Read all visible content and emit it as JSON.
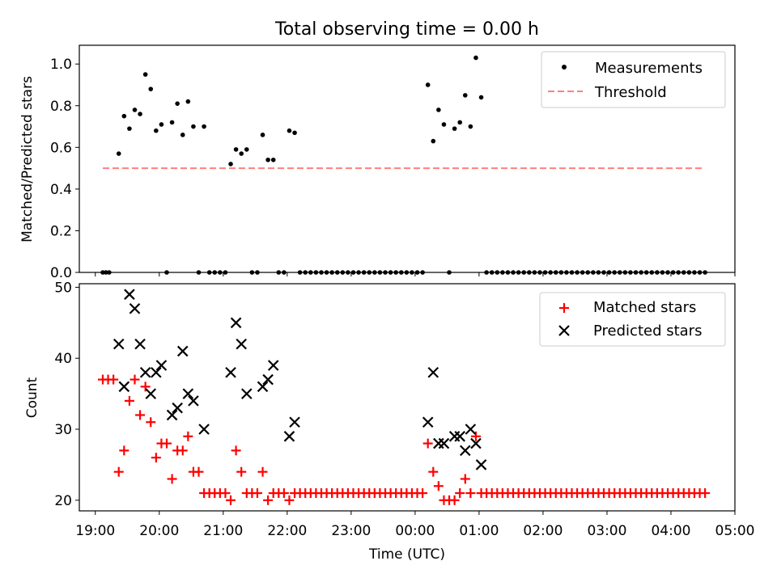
{
  "chart_data": [
    {
      "type": "scatter",
      "title": "Total observing time = 0.00 h",
      "xlabel": "",
      "ylabel": "Matched/Predicted stars",
      "xlim": [
        "18:45",
        "05:00"
      ],
      "ylim": [
        0,
        1.09
      ],
      "yticks": [
        "0.0",
        "0.2",
        "0.4",
        "0.6",
        "0.8",
        "1.0"
      ],
      "legend": {
        "position": "top-right"
      },
      "threshold": {
        "name": "Threshold",
        "value": 0.5,
        "x_from": "19:07",
        "x_to": "04:32",
        "color": "#ff7f7f"
      },
      "series": [
        {
          "name": "Measurements",
          "color": "#000000",
          "x": [
            "19:07",
            "19:10",
            "19:13",
            "19:22",
            "19:27",
            "19:32",
            "19:37",
            "19:42",
            "19:47",
            "19:52",
            "19:57",
            "20:02",
            "20:07",
            "20:12",
            "20:17",
            "20:22",
            "20:27",
            "20:32",
            "20:37",
            "20:42",
            "20:47",
            "20:52",
            "20:57",
            "21:02",
            "21:07",
            "21:12",
            "21:17",
            "21:22",
            "21:27",
            "21:32",
            "21:37",
            "21:42",
            "21:47",
            "21:52",
            "21:57",
            "22:02",
            "22:07",
            "22:12",
            "22:17",
            "22:22",
            "22:27",
            "22:32",
            "22:37",
            "22:42",
            "22:47",
            "22:52",
            "22:57",
            "23:02",
            "23:07",
            "23:12",
            "23:17",
            "23:22",
            "23:27",
            "23:32",
            "23:37",
            "23:42",
            "23:47",
            "23:52",
            "23:57",
            "00:02",
            "00:07",
            "00:12",
            "00:17",
            "00:22",
            "00:27",
            "00:32",
            "00:37",
            "00:42",
            "00:47",
            "00:52",
            "00:57",
            "01:02",
            "01:07",
            "01:12",
            "01:17",
            "01:22",
            "01:27",
            "01:32",
            "01:37",
            "01:42",
            "01:47",
            "01:52",
            "01:57",
            "02:02",
            "02:07",
            "02:12",
            "02:17",
            "02:22",
            "02:27",
            "02:32",
            "02:37",
            "02:42",
            "02:47",
            "02:52",
            "02:57",
            "03:02",
            "03:07",
            "03:12",
            "03:17",
            "03:22",
            "03:27",
            "03:32",
            "03:37",
            "03:42",
            "03:47",
            "03:52",
            "03:57",
            "04:02",
            "04:07",
            "04:12",
            "04:17",
            "04:22",
            "04:27",
            "04:32"
          ],
          "y": [
            0,
            0,
            0,
            0.57,
            0.75,
            0.69,
            0.78,
            0.76,
            0.95,
            0.88,
            0.68,
            0.71,
            0,
            0.72,
            0.81,
            0.66,
            0.82,
            0.7,
            0,
            0.7,
            0,
            0,
            0,
            0,
            0.52,
            0.59,
            0.57,
            0.59,
            0,
            0,
            0.66,
            0.54,
            0.54,
            0,
            0,
            0.68,
            0.67,
            0,
            0,
            0,
            0,
            0,
            0,
            0,
            0,
            0,
            0,
            0,
            0,
            0,
            0,
            0,
            0,
            0,
            0,
            0,
            0,
            0,
            0,
            0,
            0,
            0.9,
            0.63,
            0.78,
            0.71,
            0,
            0.69,
            0.72,
            0.85,
            0.7,
            1.03,
            0.84,
            0,
            0,
            0,
            0,
            0,
            0,
            0,
            0,
            0,
            0,
            0,
            0,
            0,
            0,
            0,
            0,
            0,
            0,
            0,
            0,
            0,
            0,
            0,
            0,
            0,
            0,
            0,
            0,
            0,
            0,
            0,
            0,
            0,
            0,
            0,
            0,
            0,
            0,
            0,
            0,
            0,
            0
          ]
        }
      ]
    },
    {
      "type": "scatter",
      "title": "",
      "xlabel": "Time (UTC)",
      "ylabel": "Count",
      "xlim": [
        "18:45",
        "05:00"
      ],
      "ylim": [
        18.5,
        50.5
      ],
      "xticks": [
        "19:00",
        "20:00",
        "21:00",
        "22:00",
        "23:00",
        "00:00",
        "01:00",
        "02:00",
        "03:00",
        "04:00",
        "05:00"
      ],
      "yticks": [
        "20",
        "30",
        "40",
        "50"
      ],
      "legend": {
        "position": "top-right"
      },
      "series": [
        {
          "name": "Matched stars",
          "marker": "plus",
          "color": "#ff0000",
          "x": [
            "19:07",
            "19:12",
            "19:17",
            "19:22",
            "19:27",
            "19:32",
            "19:37",
            "19:42",
            "19:47",
            "19:52",
            "19:57",
            "20:02",
            "20:07",
            "20:12",
            "20:17",
            "20:22",
            "20:27",
            "20:32",
            "20:37",
            "20:42",
            "20:47",
            "20:52",
            "20:57",
            "21:02",
            "21:07",
            "21:12",
            "21:17",
            "21:22",
            "21:27",
            "21:32",
            "21:37",
            "21:42",
            "21:47",
            "21:52",
            "21:57",
            "22:02",
            "22:07",
            "22:12",
            "22:17",
            "22:22",
            "22:27",
            "22:32",
            "22:37",
            "22:42",
            "22:47",
            "22:52",
            "22:57",
            "23:02",
            "23:07",
            "23:12",
            "23:17",
            "23:22",
            "23:27",
            "23:32",
            "23:37",
            "23:42",
            "23:47",
            "23:52",
            "23:57",
            "00:02",
            "00:07",
            "00:12",
            "00:17",
            "00:22",
            "00:27",
            "00:32",
            "00:37",
            "00:42",
            "00:47",
            "00:52",
            "00:57",
            "01:02",
            "01:07",
            "01:12",
            "01:17",
            "01:22",
            "01:27",
            "01:32",
            "01:37",
            "01:42",
            "01:47",
            "01:52",
            "01:57",
            "02:02",
            "02:07",
            "02:12",
            "02:17",
            "02:22",
            "02:27",
            "02:32",
            "02:37",
            "02:42",
            "02:47",
            "02:52",
            "02:57",
            "03:02",
            "03:07",
            "03:12",
            "03:17",
            "03:22",
            "03:27",
            "03:32",
            "03:37",
            "03:42",
            "03:47",
            "03:52",
            "03:57",
            "04:02",
            "04:07",
            "04:12",
            "04:17",
            "04:22",
            "04:27",
            "04:32"
          ],
          "y": [
            37,
            37,
            37,
            24,
            27,
            34,
            37,
            32,
            36,
            31,
            26,
            28,
            28,
            23,
            27,
            27,
            29,
            24,
            24,
            21,
            21,
            21,
            21,
            21,
            20,
            27,
            24,
            21,
            21,
            21,
            24,
            20,
            21,
            21,
            21,
            20,
            21,
            21,
            21,
            21,
            21,
            21,
            21,
            21,
            21,
            21,
            21,
            21,
            21,
            21,
            21,
            21,
            21,
            21,
            21,
            21,
            21,
            21,
            21,
            21,
            21,
            28,
            24,
            22,
            20,
            20,
            20,
            21,
            23,
            21,
            29,
            21,
            21,
            21,
            21,
            21,
            21,
            21,
            21,
            21,
            21,
            21,
            21,
            21,
            21,
            21,
            21,
            21,
            21,
            21,
            21,
            21,
            21,
            21,
            21,
            21,
            21,
            21,
            21,
            21,
            21,
            21,
            21,
            21,
            21,
            21,
            21,
            21,
            21,
            21,
            21,
            21,
            21,
            21
          ]
        },
        {
          "name": "Predicted stars",
          "marker": "x",
          "color": "#000000",
          "x": [
            "19:22",
            "19:27",
            "19:32",
            "19:37",
            "19:42",
            "19:47",
            "19:52",
            "19:57",
            "20:02",
            "20:12",
            "20:17",
            "20:22",
            "20:27",
            "20:32",
            "20:42",
            "21:07",
            "21:12",
            "21:17",
            "21:22",
            "21:37",
            "21:42",
            "21:47",
            "22:02",
            "22:07",
            "00:12",
            "00:17",
            "00:22",
            "00:27",
            "00:37",
            "00:42",
            "00:47",
            "00:52",
            "00:57",
            "01:02"
          ],
          "y": [
            42,
            36,
            49,
            47,
            42,
            38,
            35,
            38,
            39,
            32,
            33,
            41,
            35,
            34,
            30,
            38,
            45,
            42,
            35,
            36,
            37,
            39,
            29,
            31,
            31,
            38,
            28,
            28,
            29,
            29,
            27,
            30,
            28,
            25
          ]
        }
      ]
    }
  ]
}
